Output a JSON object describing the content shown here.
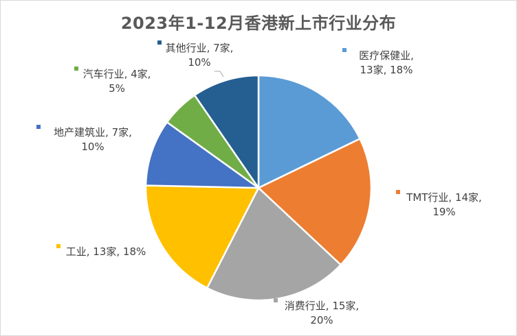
{
  "chart_data": {
    "type": "pie",
    "title": "2023年1-12月香港新上市行业分布",
    "slices": [
      {
        "label_line1": "医疗保健业,",
        "label_line2": "13家, 18%",
        "value": 13,
        "percent": 18,
        "color": "#5b9bd5"
      },
      {
        "label_line1": "TMT行业, 14家,",
        "label_line2": "19%",
        "value": 14,
        "percent": 19,
        "color": "#ed7d31"
      },
      {
        "label_line1": "消费行业, 15家,",
        "label_line2": "20%",
        "value": 15,
        "percent": 20,
        "color": "#a5a5a5"
      },
      {
        "label_line1": "工业, 13家, 18%",
        "label_line2": "",
        "value": 13,
        "percent": 18,
        "color": "#ffc000"
      },
      {
        "label_line1": "地产建筑业, 7家,",
        "label_line2": "10%",
        "value": 7,
        "percent": 10,
        "color": "#4472c4"
      },
      {
        "label_line1": "汽车行业, 4家,",
        "label_line2": "5%",
        "value": 4,
        "percent": 5,
        "color": "#70ad47"
      },
      {
        "label_line1": "其他行业, 7家,",
        "label_line2": "10%",
        "value": 7,
        "percent": 10,
        "color": "#255e91"
      }
    ]
  }
}
